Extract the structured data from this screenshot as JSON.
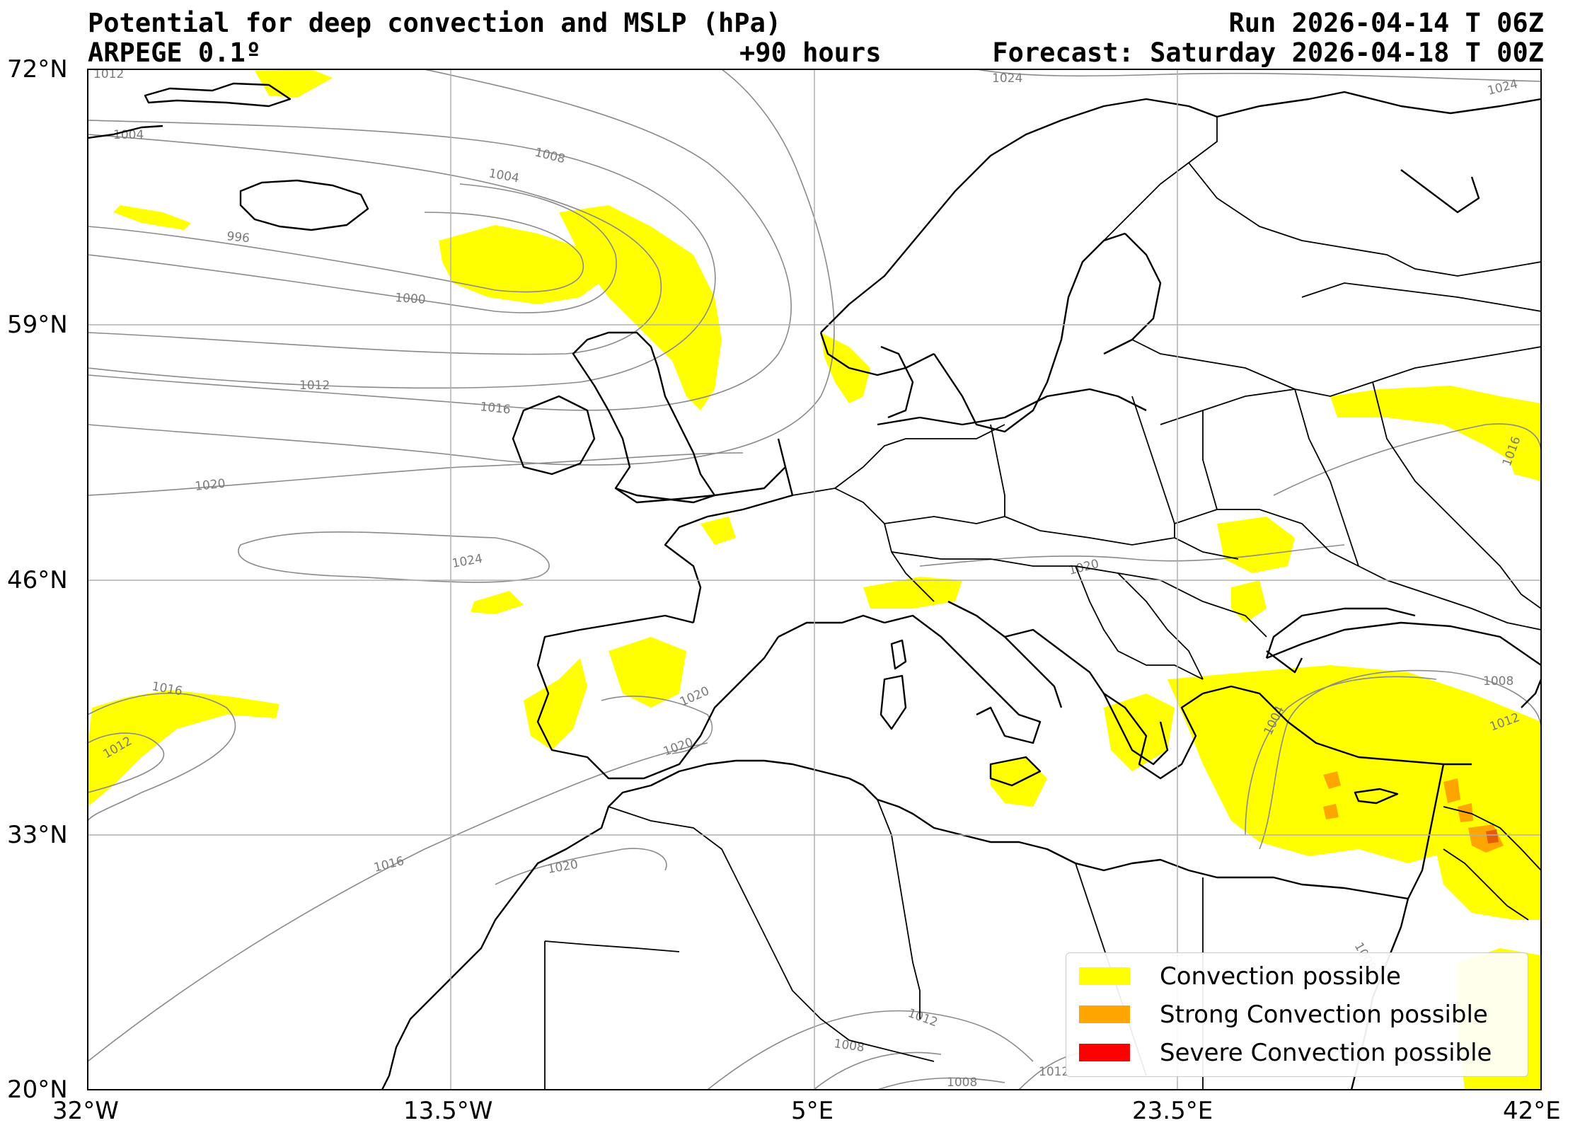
{
  "header": {
    "title": "Potential for deep convection and MSLP (hPa)",
    "model": "ARPEGE 0.1º",
    "lead_time": "+90 hours",
    "run": "Run 2026-04-14 T 06Z",
    "forecast": "Forecast: Saturday 2026-04-18 T 00Z"
  },
  "axes": {
    "lat_ticks": [
      "72°N",
      "59°N",
      "46°N",
      "33°N",
      "20°N"
    ],
    "lon_ticks": [
      "32°W",
      "13.5°W",
      "5°E",
      "23.5°E",
      "42°E"
    ]
  },
  "isobars": {
    "labels": [
      "1012",
      "1004",
      "1008",
      "1004",
      "996",
      "1000",
      "1012",
      "1016",
      "1020",
      "1024",
      "1024",
      "1024",
      "1020",
      "1016",
      "1012",
      "1020",
      "1020",
      "1016",
      "1020",
      "1012",
      "1008",
      "1008",
      "1012",
      "1004",
      "1012",
      "1008",
      "1016",
      "1008"
    ]
  },
  "legend": {
    "items": [
      {
        "label": "Convection possible",
        "color": "#ffff00"
      },
      {
        "label": "Strong Convection possible",
        "color": "#ffa500"
      },
      {
        "label": "Severe Convection possible",
        "color": "#ff0000"
      }
    ]
  },
  "colors": {
    "convection": "#ffff00",
    "strong": "#ffa500",
    "severe": "#ff0000",
    "coast": "#000000",
    "isobar": "#8a8a8a",
    "grid": "#b0b0b0"
  }
}
